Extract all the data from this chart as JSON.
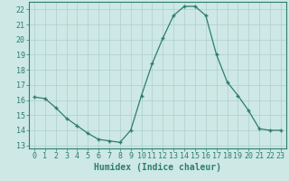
{
  "x": [
    0,
    1,
    2,
    3,
    4,
    5,
    6,
    7,
    8,
    9,
    10,
    11,
    12,
    13,
    14,
    15,
    16,
    17,
    18,
    19,
    20,
    21,
    22,
    23
  ],
  "y": [
    16.2,
    16.1,
    15.5,
    14.8,
    14.3,
    13.8,
    13.4,
    13.3,
    13.2,
    14.0,
    16.3,
    18.4,
    20.1,
    21.6,
    22.2,
    22.2,
    21.6,
    19.0,
    17.2,
    16.3,
    15.3,
    14.1,
    14.0,
    14.0
  ],
  "line_color": "#2e7d6e",
  "marker": "+",
  "marker_size": 3,
  "background_color": "#cde8e5",
  "grid_color": "#aecfcc",
  "xlabel": "Humidex (Indice chaleur)",
  "xlabel_fontsize": 7,
  "tick_fontsize": 6,
  "ylim": [
    12.8,
    22.5
  ],
  "xlim": [
    -0.5,
    23.5
  ],
  "yticks": [
    13,
    14,
    15,
    16,
    17,
    18,
    19,
    20,
    21,
    22
  ],
  "xticks": [
    0,
    1,
    2,
    3,
    4,
    5,
    6,
    7,
    8,
    9,
    10,
    11,
    12,
    13,
    14,
    15,
    16,
    17,
    18,
    19,
    20,
    21,
    22,
    23
  ]
}
